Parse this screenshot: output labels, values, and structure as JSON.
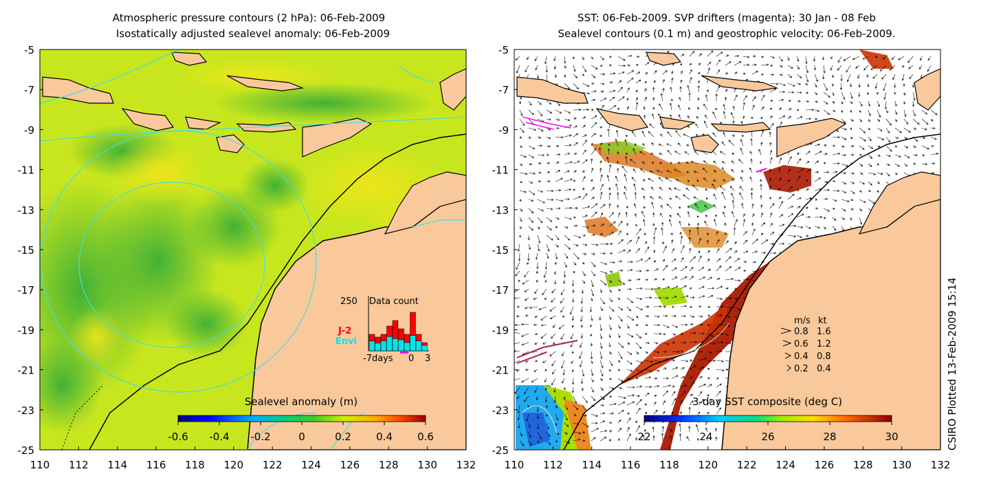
{
  "left_panel": {
    "title_line1": "Atmospheric pressure contours (2 hPa): 06-Feb-2009",
    "title_line2": "Isostatically adjusted sealevel anomaly: 06-Feb-2009",
    "colorbar": {
      "title": "Sealevel anomaly (m)",
      "ticks": [
        "-0.6",
        "-0.4",
        "-0.2",
        "0",
        "0.2",
        "0.4",
        "0.6"
      ],
      "range": [
        -0.6,
        0.6
      ]
    },
    "data_count": {
      "max_label": "250",
      "title": "Data count",
      "series_j2": "J-2",
      "series_envi": "Envi",
      "x_left": "-7days",
      "x_zero": "0",
      "x_right": "3",
      "j2_color": "#ff0000",
      "envi_color": "#00e5ee"
    }
  },
  "right_panel": {
    "title_line1": "SST: 06-Feb-2009. SVP drifters (magenta): 30 Jan - 08 Feb",
    "title_line2": "Sealevel contours (0.1 m) and geostrophic velocity: 06-Feb-2009.",
    "colorbar": {
      "title": "3-day SST composite (deg C)",
      "ticks": [
        "22",
        "24",
        "26",
        "28",
        "30"
      ],
      "range": [
        22,
        30
      ]
    },
    "velocity_legend": {
      "header_ms": "m/s",
      "header_kt": "kt",
      "rows": [
        {
          "ms": "0.8",
          "kt": "1.6"
        },
        {
          "ms": "0.6",
          "kt": "1.2"
        },
        {
          "ms": "0.4",
          "kt": "0.8"
        },
        {
          "ms": "0.2",
          "kt": "0.4"
        }
      ]
    }
  },
  "axes": {
    "x_ticks": [
      "110",
      "112",
      "114",
      "116",
      "118",
      "120",
      "122",
      "124",
      "126",
      "128",
      "130",
      "132"
    ],
    "y_ticks": [
      "-5",
      "-7",
      "-9",
      "-11",
      "-13",
      "-15",
      "-17",
      "-19",
      "-21",
      "-23",
      "-25"
    ],
    "lon_range": [
      110,
      132
    ],
    "lat_range": [
      -25,
      -5
    ]
  },
  "credit": "CSIRO Plotted 13-Feb-2009 15:14",
  "colors": {
    "land": "#f9c99b",
    "sla_background": "#c8e61e",
    "contour": "#40e0e0"
  }
}
